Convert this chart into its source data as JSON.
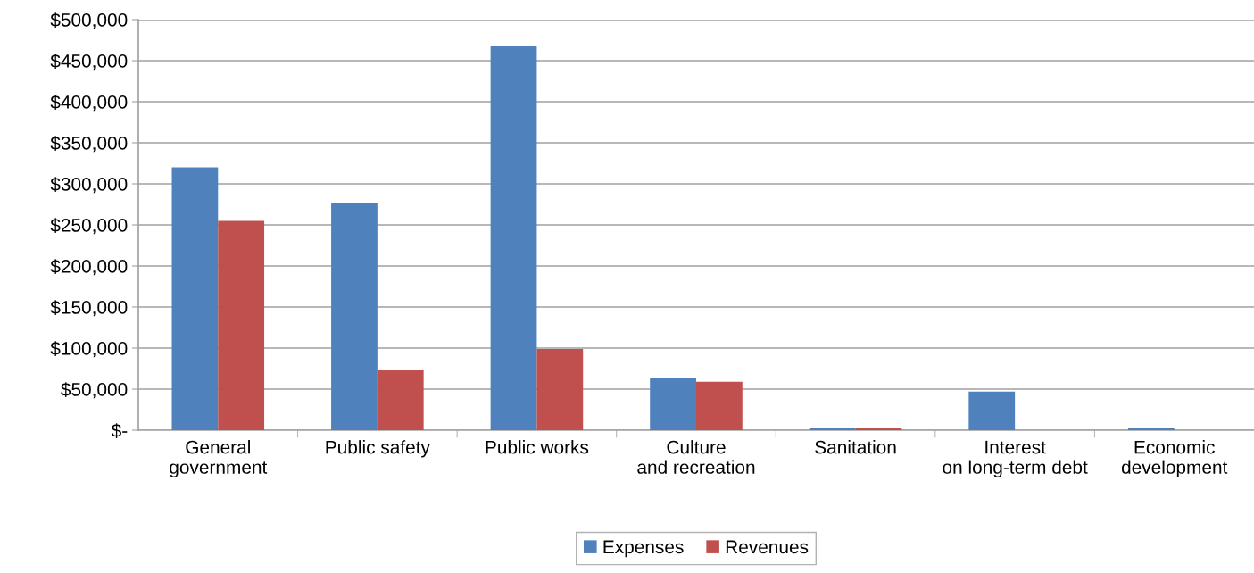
{
  "chart_data": {
    "type": "bar",
    "categories": [
      "General government",
      "Public safety",
      "Public works",
      "Culture and recreation",
      "Sanitation",
      "Interest on long-term debt",
      "Economic development"
    ],
    "series": [
      {
        "name": "Expenses",
        "color": "#4f81bd",
        "values": [
          320000,
          277000,
          468000,
          63000,
          3000,
          47000,
          3000
        ]
      },
      {
        "name": "Revenues",
        "color": "#c0504d",
        "values": [
          255000,
          74000,
          99000,
          59000,
          3000,
          0,
          0
        ]
      }
    ],
    "ylim": [
      0,
      500000
    ],
    "yticks": [
      {
        "value": 0,
        "label": "$-"
      },
      {
        "value": 50000,
        "label": "$50,000"
      },
      {
        "value": 100000,
        "label": "$100,000"
      },
      {
        "value": 150000,
        "label": "$150,000"
      },
      {
        "value": 200000,
        "label": "$200,000"
      },
      {
        "value": 250000,
        "label": "$250,000"
      },
      {
        "value": 300000,
        "label": "$300,000"
      },
      {
        "value": 350000,
        "label": "$350,000"
      },
      {
        "value": 400000,
        "label": "$400,000"
      },
      {
        "value": 450000,
        "label": "$450,000"
      },
      {
        "value": 500000,
        "label": "$500,000"
      }
    ],
    "grid": "y",
    "legend": "bottom"
  }
}
